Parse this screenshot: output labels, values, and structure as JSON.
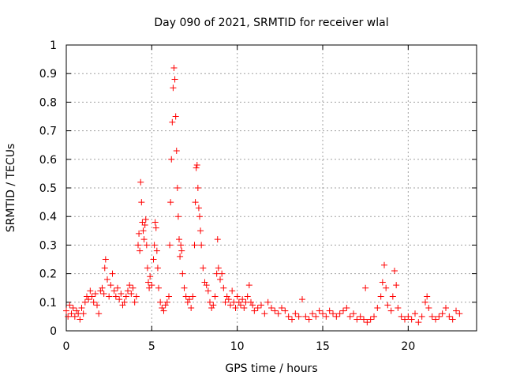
{
  "chart_data": {
    "type": "scatter",
    "title": "Day 090 of 2021, SRMTID for receiver wlal",
    "xlabel": "GPS time / hours",
    "ylabel": "SRMTID / TECUs",
    "xlim": [
      0,
      24
    ],
    "ylim": [
      0,
      1
    ],
    "xticks": [
      0,
      5,
      10,
      15,
      20
    ],
    "yticks": [
      0,
      0.1,
      0.2,
      0.3,
      0.4,
      0.5,
      0.6,
      0.7,
      0.8,
      0.9,
      1
    ],
    "xtick_labels": [
      "0",
      "5",
      "10",
      "15",
      "20"
    ],
    "ytick_labels": [
      "0",
      "0.1",
      "0.2",
      "0.3",
      "0.4",
      "0.5",
      "0.6",
      "0.7",
      "0.8",
      "0.9",
      "1"
    ],
    "grid": true,
    "marker": "+",
    "series": [
      {
        "name": "SRMTID",
        "color": "#ff0000",
        "points": [
          [
            0.0,
            0.07
          ],
          [
            0.1,
            0.05
          ],
          [
            0.2,
            0.09
          ],
          [
            0.3,
            0.06
          ],
          [
            0.4,
            0.08
          ],
          [
            0.5,
            0.05
          ],
          [
            0.6,
            0.07
          ],
          [
            0.7,
            0.06
          ],
          [
            0.8,
            0.04
          ],
          [
            0.9,
            0.08
          ],
          [
            1.0,
            0.06
          ],
          [
            1.1,
            0.1
          ],
          [
            1.2,
            0.12
          ],
          [
            1.3,
            0.11
          ],
          [
            1.4,
            0.14
          ],
          [
            1.5,
            0.12
          ],
          [
            1.6,
            0.1
          ],
          [
            1.7,
            0.13
          ],
          [
            1.8,
            0.09
          ],
          [
            1.9,
            0.06
          ],
          [
            2.0,
            0.14
          ],
          [
            2.1,
            0.15
          ],
          [
            2.2,
            0.13
          ],
          [
            2.25,
            0.22
          ],
          [
            2.3,
            0.25
          ],
          [
            2.4,
            0.18
          ],
          [
            2.5,
            0.12
          ],
          [
            2.6,
            0.16
          ],
          [
            2.7,
            0.2
          ],
          [
            2.8,
            0.14
          ],
          [
            2.9,
            0.12
          ],
          [
            3.0,
            0.15
          ],
          [
            3.1,
            0.11
          ],
          [
            3.2,
            0.13
          ],
          [
            3.3,
            0.09
          ],
          [
            3.4,
            0.1
          ],
          [
            3.5,
            0.12
          ],
          [
            3.6,
            0.14
          ],
          [
            3.7,
            0.16
          ],
          [
            3.8,
            0.13
          ],
          [
            3.9,
            0.15
          ],
          [
            4.0,
            0.1
          ],
          [
            4.1,
            0.12
          ],
          [
            4.2,
            0.3
          ],
          [
            4.25,
            0.34
          ],
          [
            4.3,
            0.28
          ],
          [
            4.35,
            0.52
          ],
          [
            4.4,
            0.45
          ],
          [
            4.45,
            0.38
          ],
          [
            4.5,
            0.35
          ],
          [
            4.55,
            0.32
          ],
          [
            4.6,
            0.37
          ],
          [
            4.65,
            0.39
          ],
          [
            4.7,
            0.3
          ],
          [
            4.75,
            0.22
          ],
          [
            4.8,
            0.17
          ],
          [
            4.85,
            0.15
          ],
          [
            4.9,
            0.19
          ],
          [
            5.0,
            0.16
          ],
          [
            5.1,
            0.25
          ],
          [
            5.15,
            0.3
          ],
          [
            5.2,
            0.38
          ],
          [
            5.25,
            0.36
          ],
          [
            5.3,
            0.28
          ],
          [
            5.35,
            0.22
          ],
          [
            5.4,
            0.15
          ],
          [
            5.5,
            0.1
          ],
          [
            5.6,
            0.08
          ],
          [
            5.7,
            0.07
          ],
          [
            5.8,
            0.09
          ],
          [
            5.9,
            0.1
          ],
          [
            6.0,
            0.12
          ],
          [
            6.05,
            0.3
          ],
          [
            6.1,
            0.45
          ],
          [
            6.15,
            0.6
          ],
          [
            6.2,
            0.73
          ],
          [
            6.25,
            0.85
          ],
          [
            6.3,
            0.92
          ],
          [
            6.35,
            0.88
          ],
          [
            6.4,
            0.75
          ],
          [
            6.45,
            0.63
          ],
          [
            6.5,
            0.5
          ],
          [
            6.55,
            0.4
          ],
          [
            6.6,
            0.32
          ],
          [
            6.65,
            0.26
          ],
          [
            6.7,
            0.3
          ],
          [
            6.75,
            0.28
          ],
          [
            6.8,
            0.2
          ],
          [
            6.9,
            0.15
          ],
          [
            7.0,
            0.12
          ],
          [
            7.1,
            0.1
          ],
          [
            7.2,
            0.11
          ],
          [
            7.3,
            0.08
          ],
          [
            7.4,
            0.12
          ],
          [
            7.5,
            0.3
          ],
          [
            7.55,
            0.45
          ],
          [
            7.6,
            0.57
          ],
          [
            7.65,
            0.58
          ],
          [
            7.7,
            0.5
          ],
          [
            7.75,
            0.43
          ],
          [
            7.8,
            0.4
          ],
          [
            7.85,
            0.35
          ],
          [
            7.9,
            0.3
          ],
          [
            8.0,
            0.22
          ],
          [
            8.1,
            0.17
          ],
          [
            8.2,
            0.16
          ],
          [
            8.3,
            0.14
          ],
          [
            8.4,
            0.1
          ],
          [
            8.5,
            0.08
          ],
          [
            8.6,
            0.09
          ],
          [
            8.7,
            0.12
          ],
          [
            8.8,
            0.2
          ],
          [
            8.85,
            0.32
          ],
          [
            8.9,
            0.22
          ],
          [
            9.0,
            0.18
          ],
          [
            9.1,
            0.2
          ],
          [
            9.2,
            0.15
          ],
          [
            9.3,
            0.1
          ],
          [
            9.4,
            0.12
          ],
          [
            9.5,
            0.11
          ],
          [
            9.6,
            0.09
          ],
          [
            9.7,
            0.14
          ],
          [
            9.8,
            0.1
          ],
          [
            9.9,
            0.08
          ],
          [
            10.0,
            0.12
          ],
          [
            10.1,
            0.1
          ],
          [
            10.2,
            0.09
          ],
          [
            10.3,
            0.11
          ],
          [
            10.4,
            0.08
          ],
          [
            10.5,
            0.1
          ],
          [
            10.6,
            0.12
          ],
          [
            10.7,
            0.16
          ],
          [
            10.8,
            0.1
          ],
          [
            10.9,
            0.09
          ],
          [
            11.0,
            0.07
          ],
          [
            11.2,
            0.08
          ],
          [
            11.4,
            0.09
          ],
          [
            11.6,
            0.06
          ],
          [
            11.8,
            0.1
          ],
          [
            12.0,
            0.08
          ],
          [
            12.2,
            0.07
          ],
          [
            12.4,
            0.06
          ],
          [
            12.6,
            0.08
          ],
          [
            12.8,
            0.07
          ],
          [
            13.0,
            0.05
          ],
          [
            13.2,
            0.04
          ],
          [
            13.4,
            0.06
          ],
          [
            13.6,
            0.05
          ],
          [
            13.8,
            0.11
          ],
          [
            14.0,
            0.05
          ],
          [
            14.2,
            0.04
          ],
          [
            14.4,
            0.06
          ],
          [
            14.6,
            0.05
          ],
          [
            14.8,
            0.07
          ],
          [
            15.0,
            0.06
          ],
          [
            15.2,
            0.05
          ],
          [
            15.4,
            0.07
          ],
          [
            15.6,
            0.06
          ],
          [
            15.8,
            0.05
          ],
          [
            16.0,
            0.06
          ],
          [
            16.2,
            0.07
          ],
          [
            16.4,
            0.08
          ],
          [
            16.6,
            0.05
          ],
          [
            16.8,
            0.06
          ],
          [
            17.0,
            0.04
          ],
          [
            17.2,
            0.05
          ],
          [
            17.4,
            0.04
          ],
          [
            17.5,
            0.15
          ],
          [
            17.6,
            0.03
          ],
          [
            17.8,
            0.04
          ],
          [
            18.0,
            0.05
          ],
          [
            18.2,
            0.08
          ],
          [
            18.4,
            0.12
          ],
          [
            18.5,
            0.17
          ],
          [
            18.6,
            0.23
          ],
          [
            18.7,
            0.15
          ],
          [
            18.8,
            0.09
          ],
          [
            19.0,
            0.07
          ],
          [
            19.1,
            0.12
          ],
          [
            19.2,
            0.21
          ],
          [
            19.3,
            0.16
          ],
          [
            19.4,
            0.08
          ],
          [
            19.6,
            0.05
          ],
          [
            19.8,
            0.04
          ],
          [
            20.0,
            0.05
          ],
          [
            20.2,
            0.04
          ],
          [
            20.4,
            0.06
          ],
          [
            20.6,
            0.03
          ],
          [
            20.8,
            0.05
          ],
          [
            21.0,
            0.1
          ],
          [
            21.1,
            0.12
          ],
          [
            21.2,
            0.08
          ],
          [
            21.4,
            0.05
          ],
          [
            21.6,
            0.04
          ],
          [
            21.8,
            0.05
          ],
          [
            22.0,
            0.06
          ],
          [
            22.2,
            0.08
          ],
          [
            22.4,
            0.05
          ],
          [
            22.6,
            0.04
          ],
          [
            22.8,
            0.07
          ],
          [
            23.0,
            0.06
          ]
        ]
      }
    ]
  }
}
